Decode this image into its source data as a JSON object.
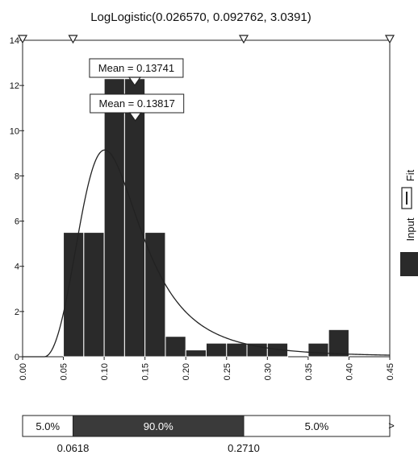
{
  "chart_data": {
    "type": "bar",
    "title": "LogLogistic(0.026570, 0.092762, 3.0391)",
    "xlim": [
      0.0,
      0.45
    ],
    "ylim": [
      0,
      14
    ],
    "x_ticks": [
      "0.00",
      "0.05",
      "0.10",
      "0.15",
      "0.20",
      "0.25",
      "0.30",
      "0.35",
      "0.40",
      "0.45"
    ],
    "y_ticks": [
      "0",
      "2",
      "4",
      "6",
      "8",
      "10",
      "12",
      "14"
    ],
    "histogram": {
      "name": "Input",
      "bins": [
        {
          "from": 0.05,
          "to": 0.075,
          "value": 5.5
        },
        {
          "from": 0.075,
          "to": 0.1,
          "value": 5.5
        },
        {
          "from": 0.1,
          "to": 0.125,
          "value": 12.3
        },
        {
          "from": 0.125,
          "to": 0.15,
          "value": 12.3
        },
        {
          "from": 0.15,
          "to": 0.175,
          "value": 5.5
        },
        {
          "from": 0.175,
          "to": 0.2,
          "value": 0.9
        },
        {
          "from": 0.2,
          "to": 0.225,
          "value": 0.3
        },
        {
          "from": 0.225,
          "to": 0.25,
          "value": 0.6
        },
        {
          "from": 0.25,
          "to": 0.275,
          "value": 0.6
        },
        {
          "from": 0.275,
          "to": 0.3,
          "value": 0.6
        },
        {
          "from": 0.3,
          "to": 0.325,
          "value": 0.6
        },
        {
          "from": 0.35,
          "to": 0.375,
          "value": 0.6
        },
        {
          "from": 0.375,
          "to": 0.4,
          "value": 1.2
        }
      ]
    },
    "fit_curve": {
      "name": "Fit",
      "gamma": 0.02657,
      "beta": 0.092762,
      "alpha": 3.0391
    },
    "means": [
      {
        "label": "Mean = 0.13741",
        "x": 0.13741
      },
      {
        "label": "Mean = 0.13817",
        "x": 0.13817
      }
    ],
    "delimiters": [
      0.0,
      0.0618,
      0.271,
      0.45
    ],
    "legend": [
      {
        "label": "Fit",
        "style": "line",
        "color": "#222222"
      },
      {
        "label": "Input",
        "style": "fill",
        "color": "#2a2a2a"
      }
    ],
    "legend_position": "right",
    "grid": false,
    "probability_band": {
      "left_pct": "5.0%",
      "middle_pct": "90.0%",
      "right_pct": "5.0%",
      "left_value": "0.0618",
      "right_value": "0.2710",
      "arrow": ">"
    }
  }
}
